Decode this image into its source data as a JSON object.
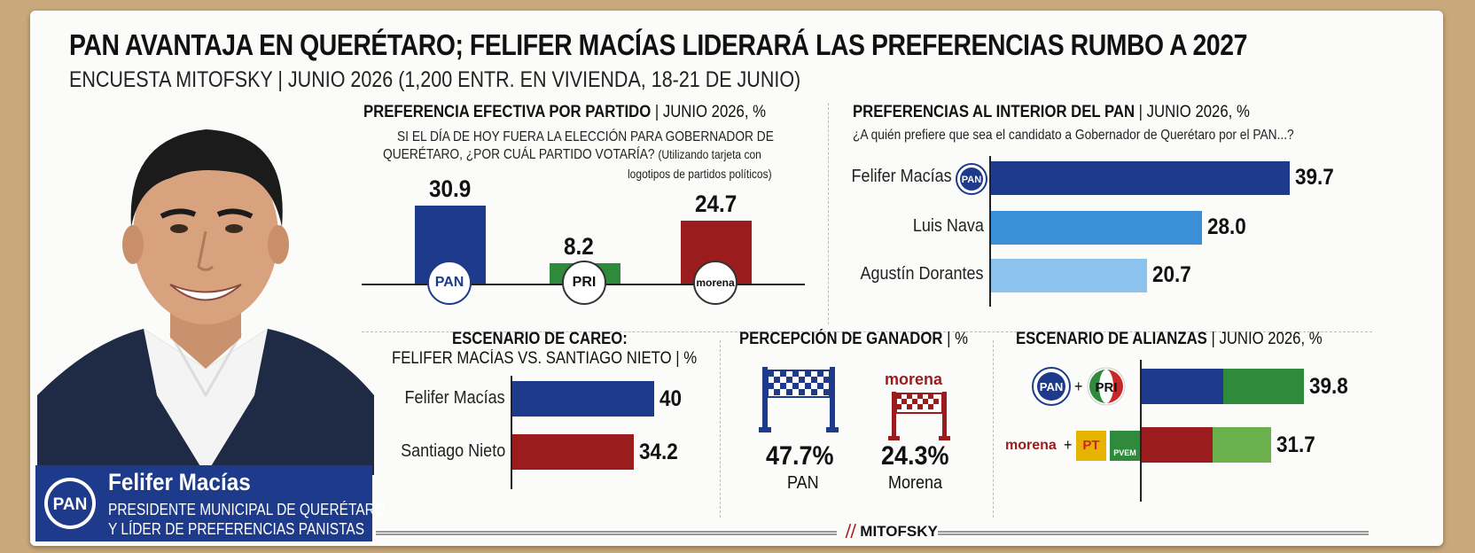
{
  "header": {
    "title": "PAN AVANTAJA EN QUERÉTARO; FELIFER MACÍAS LIDERARÁ LAS PREFERENCIAS RUMBO A 2027",
    "subtitle": "ENCUESTA MITOFSKY | JUNIO 2026 (1,200 ENTR. EN VIVIENDA, 18-21 DE JUNIO)"
  },
  "profile": {
    "name": "Felifer Macías",
    "role_line1": "PRESIDENTE MUNICIPAL DE QUERÉTARO",
    "role_line2": "Y LÍDER DE PREFERENCIAS PANISTAS",
    "logo_text": "PAN"
  },
  "chart_data": [
    {
      "type": "bar",
      "title_bold": "PREFERENCIA EFECTIVA POR PARTIDO",
      "title_rest": " | JUNIO 2026, %",
      "question_line1": "SI EL DÍA DE HOY FUERA LA ELECCIÓN PARA GOBERNADOR DE",
      "question_line2": "QUERÉTARO, ¿POR CUÁL PARTIDO VOTARÍA?",
      "question_note1": "(Utilizando tarjeta con",
      "question_note2": "logotipos de partidos políticos)",
      "categories": [
        "PAN",
        "PRI",
        "morena"
      ],
      "values": [
        30.9,
        8.2,
        24.7
      ],
      "value_labels": [
        "30.9",
        "8.2",
        "24.7"
      ],
      "colors": [
        "#1e3a8a",
        "#2f8a3c",
        "#9b1c1c"
      ],
      "ylim": [
        0,
        35
      ]
    },
    {
      "type": "bar",
      "orientation": "horizontal",
      "title_bold": "PREFERENCIAS AL INTERIOR DEL PAN",
      "title_rest": " | JUNIO 2026, %",
      "question": "¿A quién prefiere que sea el candidato a Gobernador de Querétaro por el PAN...?",
      "categories": [
        "Felifer Macías",
        "Luis Nava",
        "Agustín Dorantes"
      ],
      "values": [
        39.7,
        28.0,
        20.7
      ],
      "value_labels": [
        "39.7",
        "28.0",
        "20.7"
      ],
      "colors": [
        "#1e3a8a",
        "#3b8fd9",
        "#8cc2ee"
      ],
      "xlim": [
        0,
        40
      ]
    },
    {
      "type": "bar",
      "orientation": "horizontal",
      "title_line1": "ESCENARIO DE CAREO:",
      "title_line2_rest": "FELIFER MACÍAS VS. SANTIAGO NIETO | %",
      "categories": [
        "Felifer Macías",
        "Santiago Nieto"
      ],
      "values": [
        40,
        34.2
      ],
      "value_labels": [
        "40",
        "34.2"
      ],
      "colors": [
        "#1e3a8a",
        "#9b1c1c"
      ],
      "xlim": [
        0,
        40
      ]
    },
    {
      "type": "table",
      "title_bold": "PERCEPCIÓN DE GANADOR",
      "title_rest": " | %",
      "categories": [
        "PAN",
        "Morena"
      ],
      "values": [
        47.7,
        24.3
      ],
      "value_labels": [
        "47.7%",
        "24.3%"
      ],
      "icon_label_morena": "morena"
    },
    {
      "type": "bar",
      "orientation": "horizontal",
      "title_bold": "ESCENARIO DE ALIANZAS",
      "title_rest": " | JUNIO 2026, %",
      "categories": [
        "PAN + PRI",
        "morena + PT + PVEM"
      ],
      "values": [
        39.8,
        31.7
      ],
      "value_labels": [
        "39.8",
        "31.7"
      ],
      "segments": [
        {
          "colors": [
            "#1e3a8a",
            "#2f8a3c"
          ],
          "split": [
            0.5,
            0.5
          ]
        },
        {
          "colors": [
            "#9b1c1c",
            "#6ab04c"
          ],
          "split": [
            0.55,
            0.45
          ]
        }
      ],
      "xlim": [
        0,
        40
      ],
      "morena_text": "morena",
      "plus": "+",
      "pt_text": "PT",
      "pvem_text": "PVEM"
    }
  ],
  "footer": {
    "brand": "MITOFSKY"
  }
}
